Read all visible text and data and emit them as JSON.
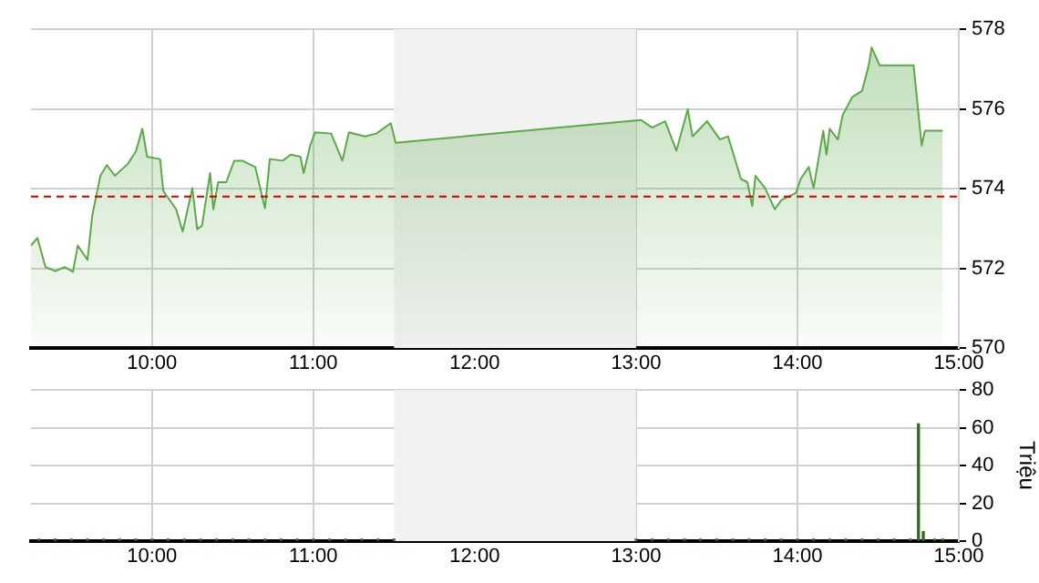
{
  "chart_data": [
    {
      "type": "area",
      "x": [
        9.25,
        9.29,
        9.34,
        9.4,
        9.46,
        9.51,
        9.54,
        9.6,
        9.63,
        9.68,
        9.72,
        9.77,
        9.85,
        9.9,
        9.94,
        9.97,
        10.05,
        10.07,
        10.15,
        10.19,
        10.25,
        10.28,
        10.31,
        10.36,
        10.38,
        10.41,
        10.46,
        10.51,
        10.56,
        10.64,
        10.7,
        10.73,
        10.81,
        10.86,
        10.92,
        10.94,
        10.98,
        11.01,
        11.11,
        11.18,
        11.22,
        11.32,
        11.39,
        11.48,
        11.51,
        13.03,
        13.1,
        13.18,
        13.25,
        13.32,
        13.35,
        13.44,
        13.52,
        13.57,
        13.65,
        13.69,
        13.72,
        13.74,
        13.8,
        13.86,
        13.9,
        13.99,
        14.02,
        14.07,
        14.1,
        14.16,
        14.18,
        14.2,
        14.25,
        14.28,
        14.34,
        14.4,
        14.44,
        14.46,
        14.51,
        14.72,
        14.77,
        14.79,
        14.9
      ],
      "series": [
        {
          "color": "#5ca84a",
          "values": [
            572.57,
            572.76,
            572.03,
            571.93,
            572.03,
            571.91,
            572.57,
            572.21,
            573.33,
            574.32,
            574.59,
            574.32,
            574.62,
            574.93,
            575.5,
            574.8,
            574.74,
            573.94,
            573.48,
            572.92,
            574.01,
            572.98,
            573.07,
            574.39,
            573.48,
            574.16,
            574.16,
            574.7,
            574.7,
            574.54,
            573.51,
            574.74,
            574.7,
            574.85,
            574.8,
            574.39,
            575.08,
            575.41,
            575.38,
            574.7,
            575.41,
            575.31,
            575.38,
            575.64,
            575.15,
            575.72,
            575.53,
            575.69,
            574.95,
            575.99,
            575.31,
            575.69,
            575.23,
            575.31,
            574.24,
            574.16,
            573.56,
            574.32,
            574.01,
            573.48,
            573.71,
            573.89,
            574.24,
            574.54,
            574.01,
            575.45,
            574.85,
            575.5,
            575.23,
            575.84,
            576.3,
            576.45,
            577.06,
            577.54,
            577.09,
            577.09,
            575.08,
            575.45,
            575.45
          ]
        }
      ],
      "xlim": [
        9.25,
        15
      ],
      "xticks": [
        {
          "value": 10,
          "label": "10:00"
        },
        {
          "value": 11,
          "label": "11:00"
        },
        {
          "value": 12,
          "label": "12:00"
        },
        {
          "value": 13,
          "label": "13:00"
        },
        {
          "value": 14,
          "label": "14:00"
        },
        {
          "value": 15,
          "label": "15:00"
        }
      ],
      "ylim": [
        570,
        578
      ],
      "yticks": [
        570,
        572,
        574,
        576,
        578
      ],
      "grid": true,
      "ref_lines": [
        {
          "axis": "y",
          "value": 573.8,
          "color": "#cc0000",
          "line_style": "dashed"
        }
      ],
      "bands": [
        {
          "axis": "x",
          "from": 11.5,
          "to": 13,
          "color": "#f2f2f2"
        }
      ]
    },
    {
      "type": "bar",
      "ylabel": "Triệu",
      "x": [
        9.3,
        9.4,
        9.5,
        9.6,
        9.7,
        9.8,
        9.9,
        10.0,
        10.1,
        10.2,
        10.3,
        10.4,
        10.5,
        10.6,
        10.7,
        10.8,
        10.9,
        11.0,
        11.1,
        11.2,
        11.3,
        11.4,
        11.5,
        13.0,
        13.1,
        13.2,
        13.3,
        13.4,
        13.5,
        13.6,
        13.7,
        13.8,
        13.9,
        14.0,
        14.1,
        14.2,
        14.3,
        14.4,
        14.5,
        14.6,
        14.7,
        14.75,
        14.78,
        14.85,
        14.9
      ],
      "series": [
        {
          "color": "#2e6b1e",
          "values": [
            1,
            1,
            1,
            1,
            1,
            1,
            1,
            1,
            1,
            1,
            1,
            1,
            1,
            1,
            1,
            1,
            1,
            1,
            1,
            1,
            1,
            1,
            1,
            1,
            1,
            1,
            1,
            1,
            1,
            1,
            1,
            1,
            1,
            1,
            1,
            1,
            1,
            1,
            1,
            1,
            1,
            62,
            5,
            1,
            1
          ]
        }
      ],
      "xlim": [
        9.25,
        15
      ],
      "xticks": [
        {
          "value": 10,
          "label": "10:00"
        },
        {
          "value": 11,
          "label": "11:00"
        },
        {
          "value": 12,
          "label": "12:00"
        },
        {
          "value": 13,
          "label": "13:00"
        },
        {
          "value": 14,
          "label": "14:00"
        },
        {
          "value": 15,
          "label": "15:00"
        }
      ],
      "ylim": [
        0,
        80
      ],
      "yticks": [
        0,
        20,
        40,
        60,
        80
      ],
      "grid": true,
      "bands": [
        {
          "axis": "x",
          "from": 11.5,
          "to": 13,
          "color": "#f2f2f2"
        }
      ]
    }
  ]
}
